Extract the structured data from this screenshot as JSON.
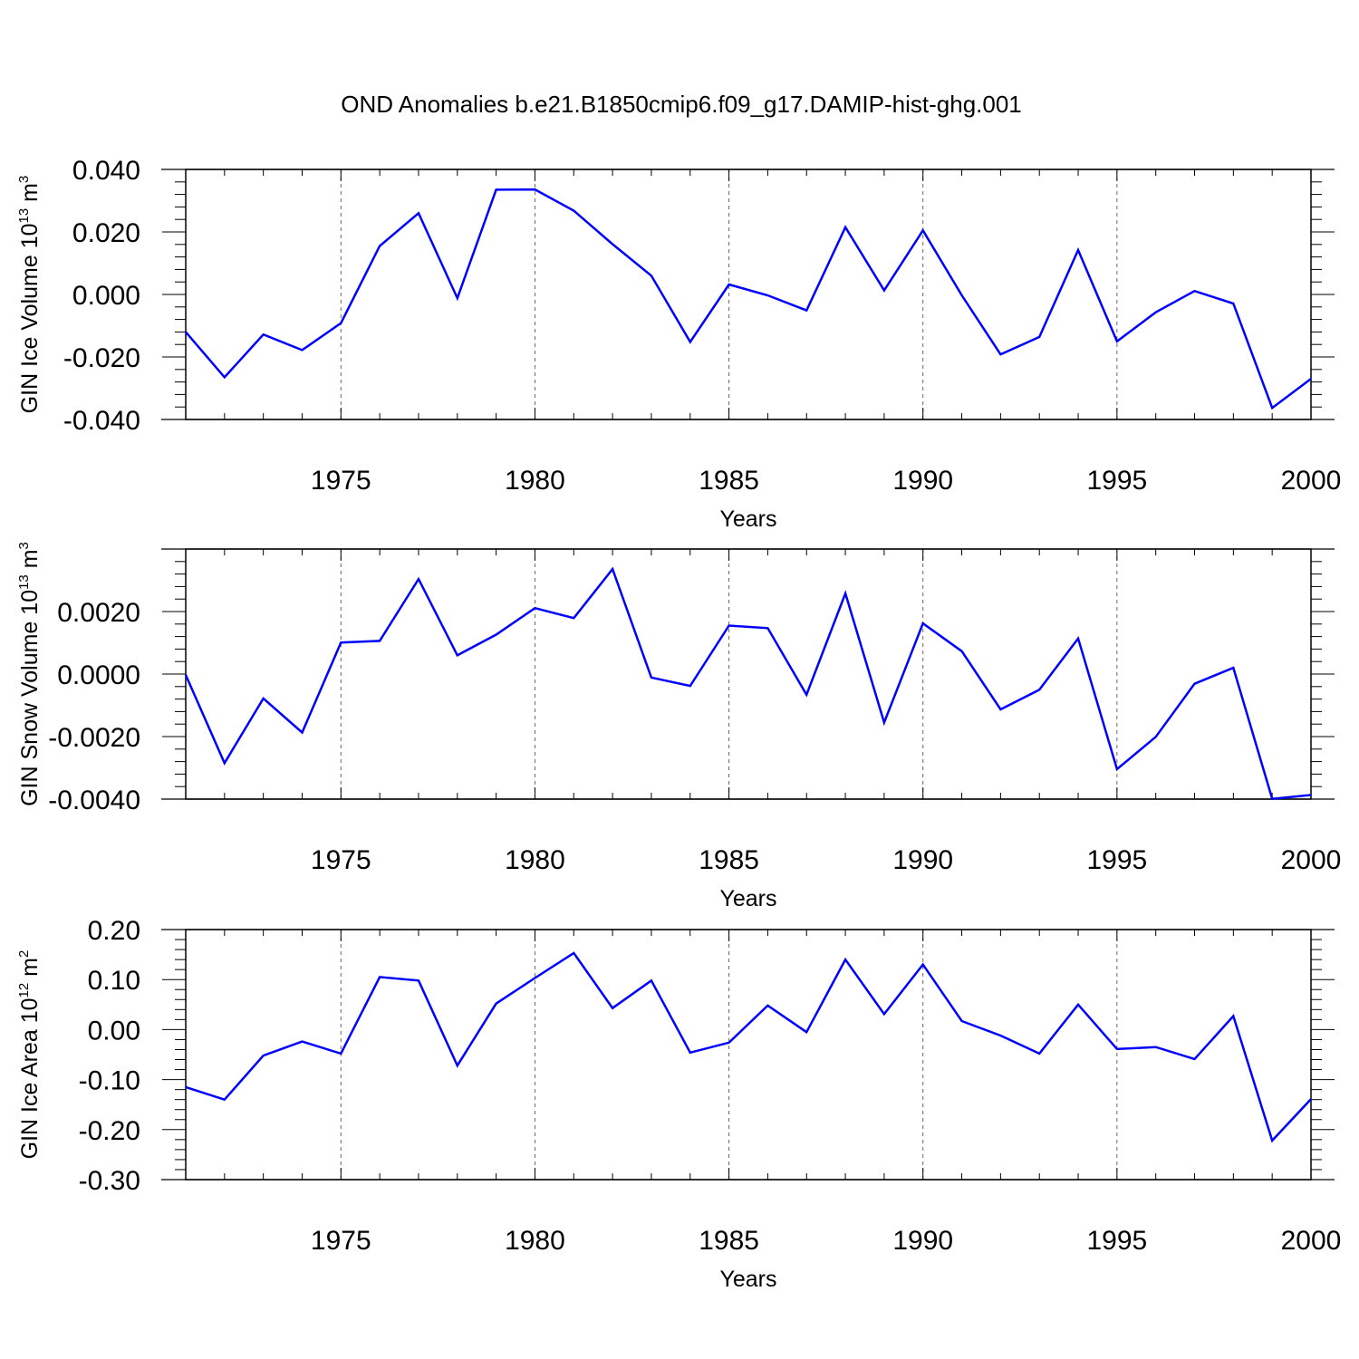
{
  "title": "OND Anomalies b.e21.B1850cmip6.f09_g17.DAMIP-hist-ghg.001",
  "line_color": "#0000ff",
  "chart_data": [
    {
      "type": "line",
      "name": "ice-volume",
      "ylabel": {
        "main": "GIN Ice Volume 10",
        "exp": "13",
        "unit": " m",
        "unit_exp": "3"
      },
      "xlabel": "Years",
      "x": [
        1971,
        1972,
        1973,
        1974,
        1975,
        1976,
        1977,
        1978,
        1979,
        1980,
        1981,
        1982,
        1983,
        1984,
        1985,
        1986,
        1987,
        1988,
        1989,
        1990,
        1991,
        1992,
        1993,
        1994,
        1995,
        1996,
        1997,
        1998,
        1999,
        2000
      ],
      "values": [
        -0.012,
        -0.0265,
        -0.0128,
        -0.0178,
        -0.0092,
        0.0155,
        0.026,
        -0.0012,
        0.0335,
        0.0336,
        0.0268,
        0.0161,
        0.006,
        -0.0152,
        0.0032,
        -0.0003,
        -0.0051,
        0.0215,
        0.0013,
        0.0205,
        -0.0003,
        -0.0192,
        -0.0136,
        0.0142,
        -0.015,
        -0.0057,
        0.0011,
        -0.0029,
        -0.0363,
        -0.027
      ],
      "xlim": [
        1971,
        2000
      ],
      "ylim": [
        -0.04,
        0.04
      ],
      "xticks": [
        1975,
        1980,
        1985,
        1990,
        1995,
        2000
      ],
      "xtick_labels": [
        "1975",
        "1980",
        "1985",
        "1990",
        "1995",
        "2000"
      ],
      "yticks": [
        -0.04,
        -0.02,
        0.0,
        0.02,
        0.04
      ],
      "ytick_labels": [
        "-0.040",
        "-0.020",
        "0.000",
        "0.020",
        "0.040"
      ],
      "grid": "vertical dashed at major x ticks"
    },
    {
      "type": "line",
      "name": "snow-volume",
      "ylabel": {
        "main": "GIN Snow Volume 10",
        "exp": "13",
        "unit": " m",
        "unit_exp": "3"
      },
      "xlabel": "Years",
      "x": [
        1971,
        1972,
        1973,
        1974,
        1975,
        1976,
        1977,
        1978,
        1979,
        1980,
        1981,
        1982,
        1983,
        1984,
        1985,
        1986,
        1987,
        1988,
        1989,
        1990,
        1991,
        1992,
        1993,
        1994,
        1995,
        1996,
        1997,
        1998,
        1999,
        2000
      ],
      "values": [
        -3e-05,
        -0.00285,
        -0.00078,
        -0.00187,
        0.00101,
        0.00106,
        0.00304,
        0.0006,
        0.00126,
        0.00211,
        0.00179,
        0.00336,
        -0.00011,
        -0.00038,
        0.00155,
        0.00147,
        -0.00066,
        0.00258,
        -0.00155,
        0.00162,
        0.00073,
        -0.00113,
        -0.0005,
        0.00114,
        -0.00304,
        -0.00201,
        -0.00031,
        0.0002,
        -0.00399,
        -0.00387
      ],
      "xlim": [
        1971,
        2000
      ],
      "ylim": [
        -0.004,
        0.004
      ],
      "xticks": [
        1975,
        1980,
        1985,
        1990,
        1995,
        2000
      ],
      "xtick_labels": [
        "1975",
        "1980",
        "1985",
        "1990",
        "1995",
        "2000"
      ],
      "yticks": [
        -0.004,
        -0.002,
        0.0,
        0.002
      ],
      "ytick_labels": [
        "-0.0040",
        "-0.0020",
        "0.0000",
        "0.0020"
      ],
      "grid": "vertical dashed at major x ticks"
    },
    {
      "type": "line",
      "name": "ice-area",
      "ylabel": {
        "main": "GIN Ice Area 10",
        "exp": "12",
        "unit": " m",
        "unit_exp": "2"
      },
      "xlabel": "Years",
      "x": [
        1971,
        1972,
        1973,
        1974,
        1975,
        1976,
        1977,
        1978,
        1979,
        1980,
        1981,
        1982,
        1983,
        1984,
        1985,
        1986,
        1987,
        1988,
        1989,
        1990,
        1991,
        1992,
        1993,
        1994,
        1995,
        1996,
        1997,
        1998,
        1999,
        2000
      ],
      "values": [
        -0.115,
        -0.14,
        -0.052,
        -0.024,
        -0.048,
        0.105,
        0.098,
        -0.072,
        0.052,
        0.103,
        0.153,
        0.043,
        0.098,
        -0.046,
        -0.026,
        0.048,
        -0.005,
        0.14,
        0.031,
        0.13,
        0.017,
        -0.012,
        -0.048,
        0.05,
        -0.039,
        -0.035,
        -0.059,
        0.027,
        -0.222,
        -0.139
      ],
      "xlim": [
        1971,
        2000
      ],
      "ylim": [
        -0.3,
        0.2
      ],
      "xticks": [
        1975,
        1980,
        1985,
        1990,
        1995,
        2000
      ],
      "xtick_labels": [
        "1975",
        "1980",
        "1985",
        "1990",
        "1995",
        "2000"
      ],
      "yticks": [
        -0.3,
        -0.2,
        -0.1,
        0.0,
        0.1,
        0.2
      ],
      "ytick_labels": [
        "-0.30",
        "-0.20",
        "-0.10",
        "0.00",
        "0.10",
        "0.20"
      ],
      "grid": "vertical dashed at major x ticks"
    }
  ]
}
